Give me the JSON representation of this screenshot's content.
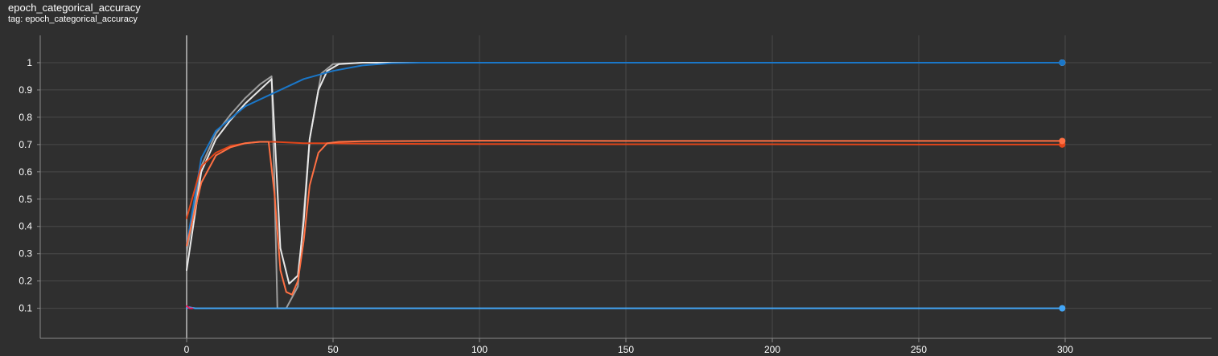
{
  "header": {
    "title": "epoch_categorical_accuracy",
    "tag_prefix": "tag:",
    "tag_value": "epoch_categorical_accuracy"
  },
  "chart_data": {
    "type": "line",
    "title": "epoch_categorical_accuracy",
    "xlabel": "",
    "ylabel": "",
    "xlim": [
      -50,
      350
    ],
    "ylim": [
      -0.01,
      1.1
    ],
    "xticks": [
      0,
      50,
      100,
      150,
      200,
      250,
      300
    ],
    "yticks": [
      0.1,
      0.2,
      0.3,
      0.4,
      0.5,
      0.6,
      0.7,
      0.8,
      0.9,
      1
    ],
    "grid": true,
    "legend": "none",
    "series": [
      {
        "color": "#9e9e9e",
        "x": [
          0,
          5,
          10,
          15,
          20,
          25,
          29,
          30,
          31,
          34,
          38,
          42,
          46,
          50,
          60,
          80,
          100,
          150,
          200,
          250,
          299
        ],
        "y": [
          0.3,
          0.62,
          0.74,
          0.81,
          0.87,
          0.92,
          0.95,
          0.55,
          0.1,
          0.1,
          0.18,
          0.72,
          0.96,
          0.995,
          1,
          1,
          1,
          1,
          1,
          1,
          1
        ]
      },
      {
        "color": "#e8e8e8",
        "x": [
          0,
          5,
          10,
          15,
          20,
          25,
          29,
          30,
          32,
          35,
          38,
          40,
          42,
          45,
          48,
          52,
          60,
          80,
          100,
          150,
          200,
          250,
          299
        ],
        "y": [
          0.24,
          0.6,
          0.72,
          0.79,
          0.85,
          0.9,
          0.94,
          0.75,
          0.32,
          0.19,
          0.22,
          0.42,
          0.72,
          0.9,
          0.97,
          0.995,
          1,
          1,
          1,
          1,
          1,
          1,
          1
        ]
      },
      {
        "color": "#1a77c9",
        "x": [
          0,
          5,
          10,
          20,
          30,
          40,
          50,
          60,
          70,
          80,
          100,
          150,
          200,
          250,
          299
        ],
        "y": [
          0.33,
          0.65,
          0.75,
          0.84,
          0.89,
          0.94,
          0.97,
          0.99,
          0.998,
          1,
          1,
          1,
          1,
          1,
          1
        ]
      },
      {
        "color": "#e0451a",
        "x": [
          0,
          5,
          10,
          15,
          20,
          25,
          30,
          40,
          50,
          60,
          100,
          150,
          200,
          250,
          299
        ],
        "y": [
          0.43,
          0.62,
          0.67,
          0.695,
          0.705,
          0.71,
          0.71,
          0.705,
          0.705,
          0.703,
          0.702,
          0.701,
          0.701,
          0.7,
          0.7
        ]
      },
      {
        "color": "#ff7043",
        "x": [
          0,
          5,
          10,
          15,
          20,
          25,
          28,
          30,
          32,
          34,
          36,
          38,
          40,
          42,
          45,
          48,
          52,
          60,
          100,
          150,
          200,
          250,
          299
        ],
        "y": [
          0.33,
          0.56,
          0.66,
          0.69,
          0.705,
          0.71,
          0.71,
          0.52,
          0.24,
          0.16,
          0.15,
          0.2,
          0.35,
          0.55,
          0.67,
          0.705,
          0.71,
          0.712,
          0.714,
          0.713,
          0.713,
          0.713,
          0.713
        ]
      },
      {
        "color": "#42a5f5",
        "x": [
          0,
          1,
          3,
          10,
          50,
          100,
          150,
          200,
          250,
          299
        ],
        "y": [
          0.1,
          0.104,
          0.1,
          0.1,
          0.1,
          0.1,
          0.1,
          0.1,
          0.1,
          0.1
        ]
      },
      {
        "color": "#e91e63",
        "x": [
          0,
          1,
          2
        ],
        "y": [
          0.108,
          0.1,
          0.1
        ]
      }
    ]
  }
}
